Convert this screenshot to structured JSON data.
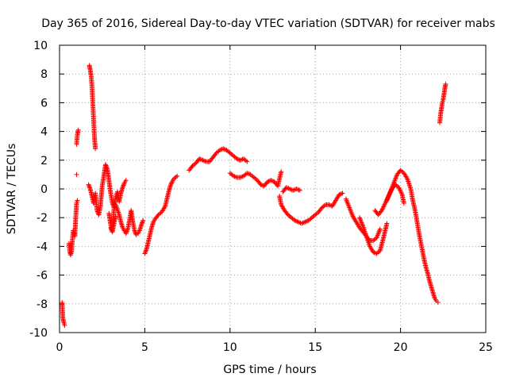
{
  "chart_data": {
    "type": "scatter",
    "title": "Day 365 of 2016, Sidereal Day-to-day VTEC variation (SDTVAR) for receiver mabs",
    "xlabel": "GPS time / hours",
    "ylabel": "SDTVAR / TECUs",
    "xlim": [
      0,
      25
    ],
    "ylim": [
      -10,
      10
    ],
    "xticks": [
      0,
      5,
      10,
      15,
      20,
      25
    ],
    "yticks": [
      -10,
      -8,
      -6,
      -4,
      -2,
      0,
      2,
      4,
      6,
      8,
      10
    ],
    "grid": true,
    "marker": "+",
    "color": "#ff0000",
    "series": [
      {
        "name": "SDTVAR",
        "points": [
          [
            0.15,
            -7.9
          ],
          [
            0.2,
            -9.0
          ],
          [
            0.25,
            -9.3
          ],
          [
            0.3,
            -9.5
          ],
          [
            0.55,
            -3.8
          ],
          [
            0.6,
            -4.3
          ],
          [
            0.65,
            -4.6
          ],
          [
            0.7,
            -4.4
          ],
          [
            0.75,
            -3.6
          ],
          [
            0.8,
            -2.9
          ],
          [
            0.85,
            -3.1
          ],
          [
            0.9,
            -3.3
          ],
          [
            0.95,
            -2.0
          ],
          [
            1.0,
            -1.0
          ],
          [
            1.05,
            -0.8
          ],
          [
            1.0,
            3.1
          ],
          [
            1.05,
            3.8
          ],
          [
            1.1,
            4.1
          ],
          [
            1.0,
            1.0
          ],
          [
            1.75,
            8.6
          ],
          [
            1.8,
            8.3
          ],
          [
            1.85,
            7.9
          ],
          [
            1.9,
            7.2
          ],
          [
            1.95,
            6.0
          ],
          [
            2.0,
            4.8
          ],
          [
            2.05,
            3.6
          ],
          [
            2.1,
            2.8
          ],
          [
            1.7,
            0.3
          ],
          [
            1.8,
            0.0
          ],
          [
            1.9,
            -0.5
          ],
          [
            2.0,
            -1.0
          ],
          [
            2.1,
            -0.3
          ],
          [
            2.2,
            -1.5
          ],
          [
            2.3,
            -1.8
          ],
          [
            2.4,
            -1.2
          ],
          [
            2.5,
            0.2
          ],
          [
            2.6,
            0.9
          ],
          [
            2.7,
            1.7
          ],
          [
            2.8,
            1.4
          ],
          [
            2.9,
            0.6
          ],
          [
            3.0,
            -0.3
          ],
          [
            3.1,
            -1.0
          ],
          [
            3.2,
            -1.3
          ],
          [
            3.3,
            -1.1
          ],
          [
            3.5,
            -1.8
          ],
          [
            3.6,
            -2.3
          ],
          [
            3.7,
            -2.7
          ],
          [
            3.8,
            -2.9
          ],
          [
            3.9,
            -3.1
          ],
          [
            4.0,
            -2.8
          ],
          [
            4.1,
            -2.2
          ],
          [
            4.2,
            -1.5
          ],
          [
            4.3,
            -2.3
          ],
          [
            4.4,
            -2.9
          ],
          [
            4.5,
            -3.2
          ],
          [
            4.6,
            -3.1
          ],
          [
            4.7,
            -2.9
          ],
          [
            4.8,
            -2.5
          ],
          [
            4.9,
            -2.2
          ],
          [
            2.9,
            -1.7
          ],
          [
            3.0,
            -2.5
          ],
          [
            3.1,
            -2.9
          ],
          [
            3.2,
            -1.3
          ],
          [
            3.3,
            -0.6
          ],
          [
            3.4,
            -0.2
          ],
          [
            3.5,
            -0.9
          ],
          [
            3.6,
            -0.3
          ],
          [
            3.7,
            0.1
          ],
          [
            3.8,
            0.4
          ],
          [
            3.9,
            0.6
          ],
          [
            3.0,
            -2.7
          ],
          [
            3.1,
            -3.0
          ],
          [
            3.2,
            -2.4
          ],
          [
            3.3,
            -1.9
          ],
          [
            5.0,
            -4.5
          ],
          [
            5.1,
            -4.2
          ],
          [
            5.2,
            -3.7
          ],
          [
            5.3,
            -3.2
          ],
          [
            5.4,
            -2.7
          ],
          [
            5.5,
            -2.3
          ],
          [
            5.6,
            -2.1
          ],
          [
            5.8,
            -1.8
          ],
          [
            6.0,
            -1.6
          ],
          [
            6.2,
            -1.2
          ],
          [
            6.3,
            -0.7
          ],
          [
            6.4,
            -0.2
          ],
          [
            6.5,
            0.2
          ],
          [
            6.6,
            0.5
          ],
          [
            6.7,
            0.7
          ],
          [
            6.9,
            0.9
          ],
          [
            7.6,
            1.3
          ],
          [
            7.8,
            1.6
          ],
          [
            8.0,
            1.8
          ],
          [
            8.2,
            2.1
          ],
          [
            8.4,
            2.0
          ],
          [
            8.6,
            1.9
          ],
          [
            8.8,
            1.9
          ],
          [
            9.0,
            2.2
          ],
          [
            9.2,
            2.5
          ],
          [
            9.4,
            2.7
          ],
          [
            9.6,
            2.8
          ],
          [
            9.8,
            2.7
          ],
          [
            10.0,
            2.5
          ],
          [
            10.2,
            2.3
          ],
          [
            10.4,
            2.1
          ],
          [
            10.6,
            2.0
          ],
          [
            10.8,
            2.1
          ],
          [
            11.0,
            1.9
          ],
          [
            10.0,
            1.1
          ],
          [
            10.2,
            0.9
          ],
          [
            10.4,
            0.8
          ],
          [
            10.6,
            0.8
          ],
          [
            10.8,
            0.9
          ],
          [
            11.0,
            1.1
          ],
          [
            11.2,
            1.0
          ],
          [
            11.4,
            0.8
          ],
          [
            11.6,
            0.6
          ],
          [
            11.8,
            0.3
          ],
          [
            12.0,
            0.2
          ],
          [
            12.2,
            0.5
          ],
          [
            12.4,
            0.6
          ],
          [
            12.6,
            0.5
          ],
          [
            12.8,
            0.2
          ],
          [
            12.9,
            0.7
          ],
          [
            13.0,
            1.2
          ],
          [
            12.9,
            -0.5
          ],
          [
            13.0,
            -1.1
          ],
          [
            13.2,
            -1.5
          ],
          [
            13.4,
            -1.8
          ],
          [
            13.6,
            -2.0
          ],
          [
            13.8,
            -2.2
          ],
          [
            14.0,
            -2.3
          ],
          [
            14.2,
            -2.4
          ],
          [
            14.4,
            -2.3
          ],
          [
            14.6,
            -2.2
          ],
          [
            14.8,
            -2.0
          ],
          [
            15.0,
            -1.8
          ],
          [
            15.2,
            -1.6
          ],
          [
            15.4,
            -1.3
          ],
          [
            15.6,
            -1.1
          ],
          [
            15.8,
            -1.1
          ],
          [
            16.0,
            -1.2
          ],
          [
            16.2,
            -0.8
          ],
          [
            16.4,
            -0.4
          ],
          [
            16.6,
            -0.3
          ],
          [
            13.1,
            -0.2
          ],
          [
            13.3,
            0.1
          ],
          [
            13.5,
            0.0
          ],
          [
            13.7,
            -0.1
          ],
          [
            13.9,
            0.0
          ],
          [
            14.1,
            -0.1
          ],
          [
            16.8,
            -0.7
          ],
          [
            17.0,
            -1.3
          ],
          [
            17.2,
            -1.9
          ],
          [
            17.4,
            -2.3
          ],
          [
            17.6,
            -2.7
          ],
          [
            17.8,
            -3.0
          ],
          [
            18.0,
            -3.3
          ],
          [
            18.2,
            -3.6
          ],
          [
            18.4,
            -3.6
          ],
          [
            18.6,
            -3.4
          ],
          [
            18.8,
            -2.8
          ],
          [
            17.6,
            -2.0
          ],
          [
            17.8,
            -2.6
          ],
          [
            18.0,
            -3.3
          ],
          [
            18.2,
            -4.0
          ],
          [
            18.4,
            -4.4
          ],
          [
            18.6,
            -4.5
          ],
          [
            18.8,
            -4.3
          ],
          [
            19.0,
            -3.4
          ],
          [
            19.2,
            -2.4
          ],
          [
            18.5,
            -1.5
          ],
          [
            18.7,
            -1.8
          ],
          [
            18.9,
            -1.5
          ],
          [
            19.1,
            -1.0
          ],
          [
            19.3,
            -0.5
          ],
          [
            19.5,
            0.0
          ],
          [
            19.7,
            0.3
          ],
          [
            19.9,
            0.1
          ],
          [
            20.1,
            -0.4
          ],
          [
            20.2,
            -1.0
          ],
          [
            19.2,
            -0.8
          ],
          [
            19.4,
            -0.2
          ],
          [
            19.6,
            0.4
          ],
          [
            19.8,
            1.0
          ],
          [
            20.0,
            1.3
          ],
          [
            20.2,
            1.1
          ],
          [
            20.4,
            0.7
          ],
          [
            20.6,
            0.0
          ],
          [
            20.7,
            -0.7
          ],
          [
            20.8,
            -1.2
          ],
          [
            20.9,
            -1.8
          ],
          [
            21.0,
            -2.5
          ],
          [
            21.1,
            -3.2
          ],
          [
            21.2,
            -3.8
          ],
          [
            21.3,
            -4.4
          ],
          [
            21.4,
            -5.0
          ],
          [
            21.5,
            -5.5
          ],
          [
            21.6,
            -5.9
          ],
          [
            21.7,
            -6.4
          ],
          [
            21.8,
            -6.8
          ],
          [
            21.9,
            -7.2
          ],
          [
            22.0,
            -7.6
          ],
          [
            22.1,
            -7.8
          ],
          [
            22.2,
            -7.9
          ],
          [
            22.3,
            4.6
          ],
          [
            22.35,
            5.2
          ],
          [
            22.4,
            5.6
          ],
          [
            22.45,
            6.0
          ],
          [
            22.5,
            6.2
          ],
          [
            22.55,
            6.6
          ],
          [
            22.6,
            7.0
          ],
          [
            22.65,
            7.3
          ]
        ]
      }
    ]
  }
}
